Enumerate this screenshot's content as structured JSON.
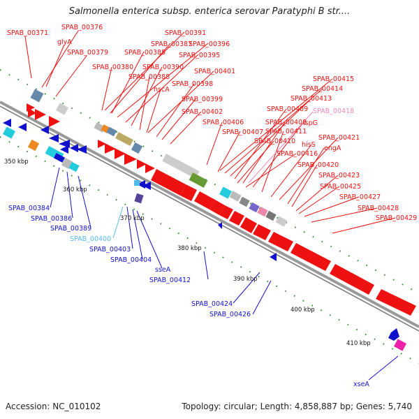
{
  "title": "Salmonella enterica subsp. enterica serovar Paratyphi B str....",
  "footer": {
    "accession": "Accession: NC_010102",
    "summary": "Topology: circular; Length: 4,858,887 bp; Genes: 5,740"
  },
  "colors": {
    "forward": "#ee1111",
    "reverse": "#1111cc",
    "highlight": "#ee88bb",
    "cyan": "#22ccdd",
    "backbone": "#999999",
    "tick": "#228822"
  },
  "ticks": [
    "350 kbp",
    "360 kbp",
    "370 kbp",
    "380 kbp",
    "390 kbp",
    "400 kbp",
    "410 kbp"
  ],
  "forward_labels": [
    "SPAB_00371",
    "SPAB_00376",
    "glyA",
    "SPAB_00379",
    "SPAB_00391",
    "SPAB_00387",
    "SPAB_00396",
    "SPAB_00385",
    "SPAB_00395",
    "SPAB_00380",
    "SPAB_00390",
    "SPAB_00388",
    "SPAB_00401",
    "hscA",
    "SPAB_00398",
    "SPAB_00399",
    "SPAB_00402",
    "SPAB_00415",
    "SPAB_00414",
    "SPAB_00413",
    "SPAB_00409",
    "SPAB_00418",
    "SPAB_00406",
    "SPAB_00408",
    "ispG",
    "SPAB_00407",
    "SPAB_00411",
    "hisS",
    "SPAB_00421",
    "SPAB_00410",
    "engA",
    "SPAB_00416",
    "SPAB_00420",
    "SPAB_00423",
    "SPAB_00425",
    "SPAB_00427",
    "SPAB_00428",
    "SPAB_00429"
  ],
  "reverse_labels": [
    "SPAB_00384",
    "SPAB_00386",
    "SPAB_00389",
    "SPAB_00400",
    "SPAB_00403",
    "SPAB_00404",
    "sseA",
    "SPAB_00412",
    "SPAB_00424",
    "SPAB_00426",
    "xseA"
  ]
}
